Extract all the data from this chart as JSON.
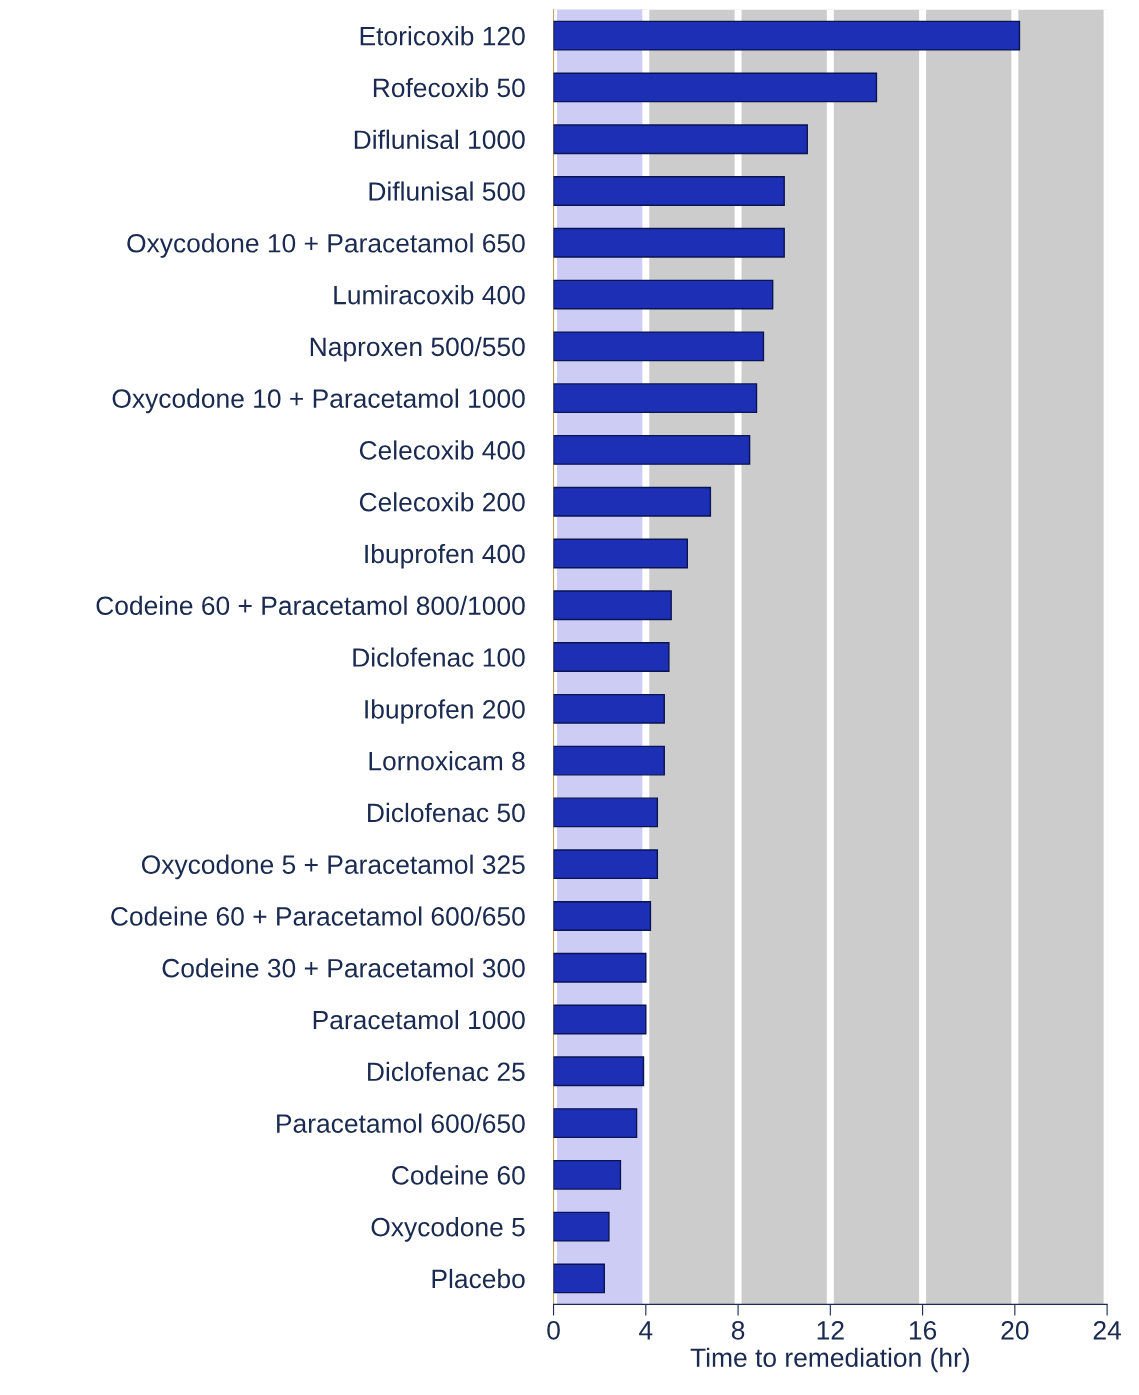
{
  "chart_data": {
    "type": "bar",
    "orientation": "horizontal",
    "xlabel": "Time to remediation (hr)",
    "categories": [
      "Etoricoxib 120",
      "Rofecoxib 50",
      "Diflunisal 1000",
      "Diflunisal 500",
      "Oxycodone 10 + Paracetamol 650",
      "Lumiracoxib 400",
      "Naproxen 500/550",
      "Oxycodone 10 + Paracetamol 1000",
      "Celecoxib 400",
      "Celecoxib 200",
      "Ibuprofen 400",
      "Codeine 60 + Paracetamol 800/1000",
      "Diclofenac 100",
      "Ibuprofen 200",
      "Lornoxicam 8",
      "Diclofenac 50",
      "Oxycodone 5 + Paracetamol 325",
      "Codeine 60 + Paracetamol 600/650",
      "Codeine 30 + Paracetamol 300",
      "Paracetamol 1000",
      "Diclofenac 25",
      "Paracetamol 600/650",
      "Codeine 60",
      "Oxycodone 5",
      "Placebo"
    ],
    "values": [
      20.2,
      14.0,
      11.0,
      10.0,
      10.0,
      9.5,
      9.1,
      8.8,
      8.5,
      6.8,
      5.8,
      5.1,
      5.0,
      4.8,
      4.8,
      4.5,
      4.5,
      4.2,
      4.0,
      4.0,
      3.9,
      3.6,
      2.9,
      2.4,
      2.2
    ],
    "color": "#1c2fb5",
    "xlim": [
      0,
      24
    ],
    "xticks": [
      0,
      4,
      8,
      12,
      16,
      20,
      24
    ],
    "bands": [
      {
        "axis": "x",
        "from": 0,
        "to": 4,
        "color": "#ccccf5"
      }
    ],
    "grid": "x",
    "legend": false
  }
}
